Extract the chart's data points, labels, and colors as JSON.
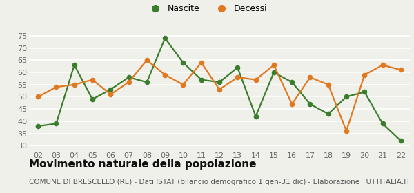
{
  "years": [
    "02",
    "03",
    "04",
    "05",
    "06",
    "07",
    "08",
    "09",
    "10",
    "11",
    "12",
    "13",
    "14",
    "15",
    "16",
    "17",
    "18",
    "19",
    "20",
    "21",
    "22"
  ],
  "nascite": [
    38,
    39,
    63,
    49,
    53,
    58,
    56,
    74,
    64,
    57,
    56,
    62,
    42,
    60,
    56,
    47,
    43,
    50,
    52,
    39,
    32
  ],
  "decessi": [
    50,
    54,
    55,
    57,
    51,
    56,
    65,
    59,
    55,
    64,
    53,
    58,
    57,
    63,
    47,
    58,
    55,
    36,
    59,
    63,
    61
  ],
  "nascite_color": "#3a7d2c",
  "decessi_color": "#e07820",
  "background_color": "#f0f0eb",
  "grid_color": "#ffffff",
  "ylim_min": 28,
  "ylim_max": 77,
  "yticks": [
    30,
    35,
    40,
    45,
    50,
    55,
    60,
    65,
    70,
    75
  ],
  "title": "Movimento naturale della popolazione",
  "subtitle": "COMUNE DI BRESCELLO (RE) - Dati ISTAT (bilancio demografico 1 gen-31 dic) - Elaborazione TUTTITALIA.IT",
  "legend_nascite": "Nascite",
  "legend_decessi": "Decessi",
  "title_fontsize": 11,
  "subtitle_fontsize": 7.5,
  "legend_fontsize": 9,
  "tick_fontsize": 8,
  "marker_size": 4.5,
  "line_width": 1.6
}
